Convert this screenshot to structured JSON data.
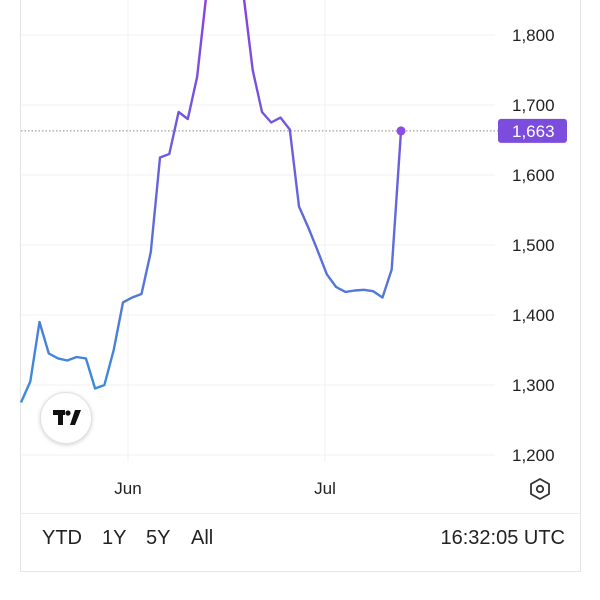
{
  "chart_data": {
    "type": "line",
    "y_ticks": [
      "1,800",
      "1,700",
      "1,600",
      "1,500",
      "1,400",
      "1,300",
      "1,200"
    ],
    "y_tick_values": [
      1800,
      1700,
      1600,
      1500,
      1400,
      1300,
      1200
    ],
    "x_ticks": [
      "Jun",
      "Jul"
    ],
    "ylim": [
      1190,
      1850
    ],
    "last_value_label": "1,663",
    "last_value": 1663,
    "points": [
      [
        0,
        1275
      ],
      [
        1,
        1305
      ],
      [
        2,
        1390
      ],
      [
        3,
        1345
      ],
      [
        4,
        1338
      ],
      [
        5,
        1335
      ],
      [
        6,
        1340
      ],
      [
        7,
        1338
      ],
      [
        8,
        1295
      ],
      [
        9,
        1300
      ],
      [
        10,
        1350
      ],
      [
        11,
        1418
      ],
      [
        12,
        1425
      ],
      [
        13,
        1430
      ],
      [
        14,
        1490
      ],
      [
        15,
        1625
      ],
      [
        16,
        1630
      ],
      [
        17,
        1690
      ],
      [
        18,
        1680
      ],
      [
        19,
        1740
      ],
      [
        20,
        1860
      ],
      [
        21,
        1900
      ],
      [
        22,
        1900
      ],
      [
        23,
        1900
      ],
      [
        24,
        1860
      ],
      [
        25,
        1750
      ],
      [
        26,
        1690
      ],
      [
        27,
        1675
      ],
      [
        28,
        1682
      ],
      [
        29,
        1665
      ],
      [
        30,
        1555
      ],
      [
        31,
        1525
      ],
      [
        32,
        1492
      ],
      [
        33,
        1458
      ],
      [
        34,
        1440
      ],
      [
        35,
        1433
      ],
      [
        36,
        1435
      ],
      [
        37,
        1436
      ],
      [
        38,
        1434
      ],
      [
        39,
        1425
      ],
      [
        40,
        1465
      ],
      [
        41,
        1663
      ]
    ],
    "grid": true,
    "line_color_start": "#2e9ad6",
    "line_color_end": "#8a40e0",
    "marker_color": "#8a4be6",
    "label_color": "#7c4ddd"
  },
  "range_buttons": [
    "YTD",
    "1Y",
    "5Y",
    "All"
  ],
  "time": "16:32:05 UTC",
  "icons": {
    "logo": "tradingview-logo-icon",
    "settings": "settings-hexagon-icon"
  }
}
